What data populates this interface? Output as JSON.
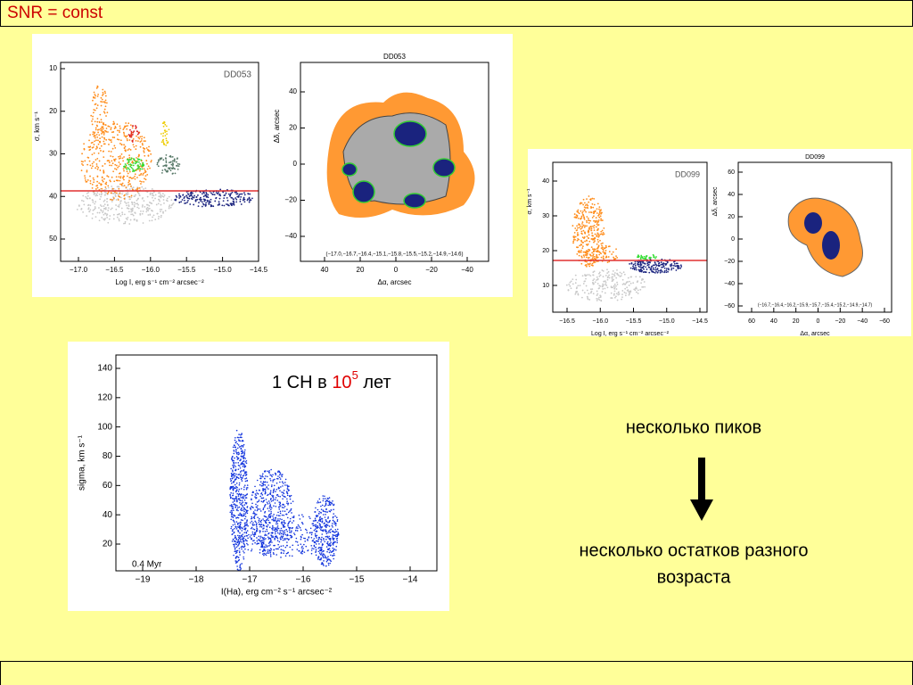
{
  "header": {
    "title": "SNR = const"
  },
  "dd053_scatter": {
    "label": "DD053",
    "ylabel": "σ, km s⁻¹",
    "xlabel": "Log I, erg s⁻¹ cm⁻² arcsec⁻²",
    "yticks": [
      "10",
      "20",
      "30",
      "40",
      "50"
    ],
    "xticks": [
      "−17.0",
      "−16.5",
      "−16.0",
      "−15.5",
      "−15.0",
      "−14.5"
    ]
  },
  "dd053_map": {
    "title": "DD053",
    "ylabel": "Δδ, arcsec",
    "xlabel": "Δα, arcsec",
    "yticks": [
      "40",
      "20",
      "0",
      "−20",
      "−40"
    ],
    "xticks": [
      "40",
      "20",
      "0",
      "−20",
      "−40"
    ],
    "levels": "(−17.0,−16.7,−16.4,−15.1,−15.8,−15.5,−15.2,−14.9,−14.6)"
  },
  "dd099_scatter": {
    "label": "DD099",
    "ylabel": "σ, km s⁻¹",
    "xlabel": "Log I, erg s⁻¹ cm⁻² arcsec⁻²",
    "yticks": [
      "40",
      "30",
      "20",
      "10"
    ],
    "xticks": [
      "−16.5",
      "−16.0",
      "−15.5",
      "−15.0",
      "−14.5"
    ]
  },
  "dd099_map": {
    "title": "DD099",
    "ylabel": "Δδ, arcsec",
    "xlabel": "Δα, arcsec",
    "yticks": [
      "60",
      "40",
      "20",
      "0",
      "−20",
      "−40",
      "−60"
    ],
    "xticks": [
      "60",
      "40",
      "20",
      "0",
      "−20",
      "−40",
      "−60"
    ],
    "levels": "(−16.7,−16.4,−16.2,−15.9,−15.7,−15.4,−15.2,−14.9,−14.7)"
  },
  "model_plot": {
    "ylabel": "sigma, km s⁻¹",
    "xlabel": "I(Ha), erg cm⁻² s⁻¹ arcsec⁻²",
    "yticks": [
      "140",
      "120",
      "100",
      "80",
      "60",
      "40",
      "20"
    ],
    "xticks": [
      "−19",
      "−18",
      "−17",
      "−16",
      "−15",
      "−14"
    ],
    "annotation": "0.4 Myr",
    "caption_pre": "1 СН в ",
    "caption_base": "10",
    "caption_exp": "5",
    "caption_post": " лет"
  },
  "text": {
    "peaks": "несколько пиков",
    "remnants_1": "несколько остатков разного",
    "remnants_2": "возраста"
  }
}
